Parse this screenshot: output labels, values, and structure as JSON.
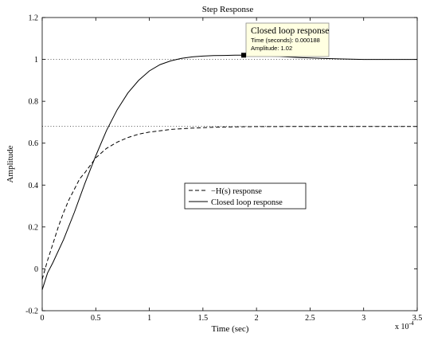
{
  "chart_data": {
    "type": "line",
    "title": "Step Response",
    "xlabel": "Time (sec)",
    "ylabel": "Amplitude",
    "x_multiplier_label": "x 10",
    "x_multiplier_exponent": "-4",
    "xlim": [
      0,
      3.5
    ],
    "ylim": [
      -0.2,
      1.2
    ],
    "xticks": [
      "0",
      "0.5",
      "1",
      "1.5",
      "2",
      "2.5",
      "3",
      "3.5"
    ],
    "yticks": [
      "-0.2",
      "0",
      "0.2",
      "0.4",
      "0.6",
      "0.8",
      "1",
      "1.2"
    ],
    "grid": false,
    "legend_position": "center",
    "reference_lines": [
      1.0,
      0.68
    ],
    "series": [
      {
        "name": "−H(s) response",
        "style": "dashed",
        "x": [
          0,
          0.05,
          0.1,
          0.15,
          0.2,
          0.25,
          0.3,
          0.35,
          0.4,
          0.5,
          0.6,
          0.7,
          0.8,
          0.9,
          1.0,
          1.2,
          1.4,
          1.6,
          1.8,
          2.0,
          2.5,
          3.0,
          3.5
        ],
        "y": [
          -0.05,
          0.04,
          0.12,
          0.2,
          0.27,
          0.33,
          0.38,
          0.43,
          0.46,
          0.53,
          0.575,
          0.605,
          0.627,
          0.643,
          0.653,
          0.666,
          0.672,
          0.676,
          0.678,
          0.679,
          0.68,
          0.68,
          0.68
        ]
      },
      {
        "name": "Closed loop response",
        "style": "solid",
        "x": [
          0,
          0.05,
          0.1,
          0.2,
          0.3,
          0.4,
          0.5,
          0.6,
          0.7,
          0.8,
          0.9,
          1.0,
          1.1,
          1.2,
          1.3,
          1.4,
          1.5,
          1.6,
          1.7,
          1.8,
          1.88,
          2.0,
          2.2,
          2.4,
          2.6,
          2.8,
          3.0,
          3.2,
          3.5
        ],
        "y": [
          -0.1,
          -0.02,
          0.03,
          0.14,
          0.27,
          0.41,
          0.54,
          0.66,
          0.76,
          0.84,
          0.9,
          0.945,
          0.975,
          0.993,
          1.005,
          1.012,
          1.016,
          1.018,
          1.019,
          1.02,
          1.02,
          1.018,
          1.014,
          1.009,
          1.005,
          1.002,
          1.0,
          1.0,
          1.0
        ]
      }
    ],
    "legend": [
      "−H(s) response",
      "Closed loop response"
    ],
    "datatip": {
      "title": "Closed loop response",
      "time_line": "Time (seconds): 0.000188",
      "amplitude_line": "Amplitude: 1.02",
      "x": 1.88,
      "y": 1.02
    }
  },
  "colors": {
    "line": "#000000",
    "datatip_bg": "#ffffe1",
    "datatip_border": "#8c8c8c",
    "figure_bg": "#ffffff"
  }
}
